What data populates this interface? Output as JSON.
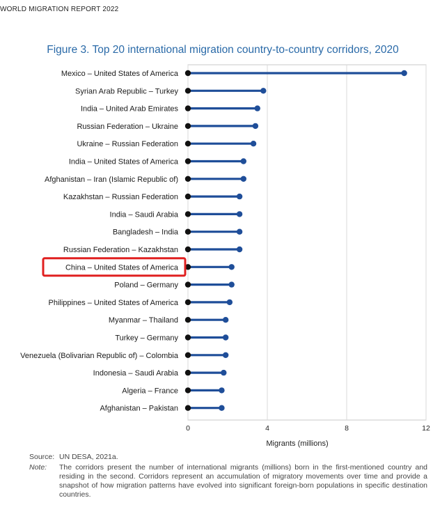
{
  "running_header": "WORLD MIGRATION REPORT 2022",
  "figure_title": "Figure 3. Top 20 international migration country-to-country corridors, 2020",
  "source": {
    "label": "Source:",
    "text": "UN DESA, 2021a."
  },
  "note": {
    "label": "Note:",
    "text": "The corridors present the number of international migrants (millions) born in the first-mentioned country and residing in the second. Corridors represent an accumulation of migratory movements over time and provide a snapshot of how migration patterns have evolved into significant foreign-born populations in specific destination countries."
  },
  "highlighted_category": "China – United States of America",
  "colors": {
    "stem": "#1f4e99",
    "dot": "#1f4e99",
    "base_dot": "#111111",
    "highlight": "#e02020",
    "grid": "#d9d9d9",
    "title": "#2a6aa8"
  },
  "chart_data": {
    "type": "lollipop",
    "title": "Figure 3. Top 20 international migration country-to-country corridors, 2020",
    "xlabel": "Migrants (millions)",
    "ylabel": "",
    "xlim": [
      0,
      12
    ],
    "xticks": [
      0,
      4,
      8,
      12
    ],
    "grid": true,
    "categories": [
      "Mexico – United States of America",
      "Syrian Arab Republic – Turkey",
      "India – United Arab Emirates",
      "Russian Federation – Ukraine",
      "Ukraine – Russian Federation",
      "India – United States of America",
      "Afghanistan – Iran (Islamic Republic of)",
      "Kazakhstan – Russian Federation",
      "India – Saudi Arabia",
      "Bangladesh – India",
      "Russian Federation – Kazakhstan",
      "China – United States of America",
      "Poland – Germany",
      "Philippines – United States of America",
      "Myanmar – Thailand",
      "Turkey – Germany",
      "Venezuela (Bolivarian Republic of) – Colombia",
      "Indonesia – Saudi Arabia",
      "Algeria – France",
      "Afghanistan – Pakistan"
    ],
    "values": [
      10.9,
      3.8,
      3.5,
      3.4,
      3.3,
      2.8,
      2.8,
      2.6,
      2.6,
      2.6,
      2.6,
      2.2,
      2.2,
      2.1,
      1.9,
      1.9,
      1.9,
      1.8,
      1.7,
      1.7
    ]
  }
}
